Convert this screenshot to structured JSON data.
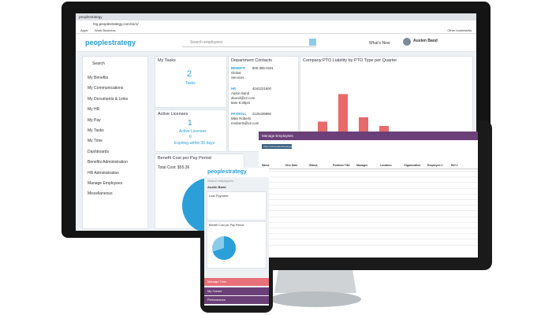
{
  "browser": {
    "tab": "peoplestrategy",
    "url": "hrg.peoplestrategy.com/11/1/",
    "bookmarks": [
      "Apps",
      "Work Business"
    ],
    "other_bookmarks": "Other bookmarks"
  },
  "header": {
    "logo": "peoplestrategy",
    "search": "Search employees",
    "whats_new": "What's New",
    "user": "Austen Band"
  },
  "sidebar": {
    "search": "Search",
    "items": [
      "My Benefits",
      "My Communications",
      "My Documents & Links",
      "My HR",
      "My Pay",
      "My Tasks",
      "My Time",
      "Dashboards",
      "Benefits Administration",
      "HR Administration",
      "Manage Employees",
      "Miscellaneous"
    ]
  },
  "widgets": {
    "my_tasks": {
      "title": "My Tasks",
      "count": 2,
      "label": "Tasks"
    },
    "licenses": {
      "title": "Active Licenses",
      "active_count": 1,
      "active_label": "Active Licenses",
      "expiring_count": 0,
      "expiring_label": "Expiring within 30 days"
    },
    "contacts": {
      "title": "Department Contacts",
      "entries": [
        {
          "dept": "BENEFIT",
          "lines": [
            "800-385-0331",
            "Global",
            "Services"
          ]
        },
        {
          "dept": "HR",
          "lines": [
            "4042221600",
            "Austin Band",
            "abond@x2.com",
            "8am-5:30pm"
          ]
        },
        {
          "dept": "PAYROLL",
          "lines": [
            "2125439966",
            "Mike Roberts",
            "mroberts@x2.com"
          ]
        }
      ]
    },
    "pto_chart": {
      "type": "bar",
      "title": "Company PTO Liability by PTO Type per Quarter",
      "values": [
        30,
        68,
        36,
        24
      ],
      "ylim": [
        0,
        100
      ],
      "color": "#e86a6a"
    },
    "benefit_cost": {
      "title": "Benefit Cost per Pay Period",
      "total": "Total Cost: $55.36"
    }
  },
  "tablet": {
    "title": "Manage Employees",
    "button": "View Unbounded Employees",
    "columns": [
      "Name",
      "Hire Date",
      "Status",
      "Position Title",
      "Manager",
      "Location",
      "Organization",
      "Employee #",
      "Ref #"
    ]
  },
  "phone": {
    "logo": "peoplestrategy",
    "search": "Search employees",
    "user": "Austin Band",
    "last_payment": "Last Payment",
    "benefit_cost": "Benefit Cost per Pay Period",
    "buttons": [
      "Manage Time",
      "My Career",
      "Performance"
    ]
  }
}
